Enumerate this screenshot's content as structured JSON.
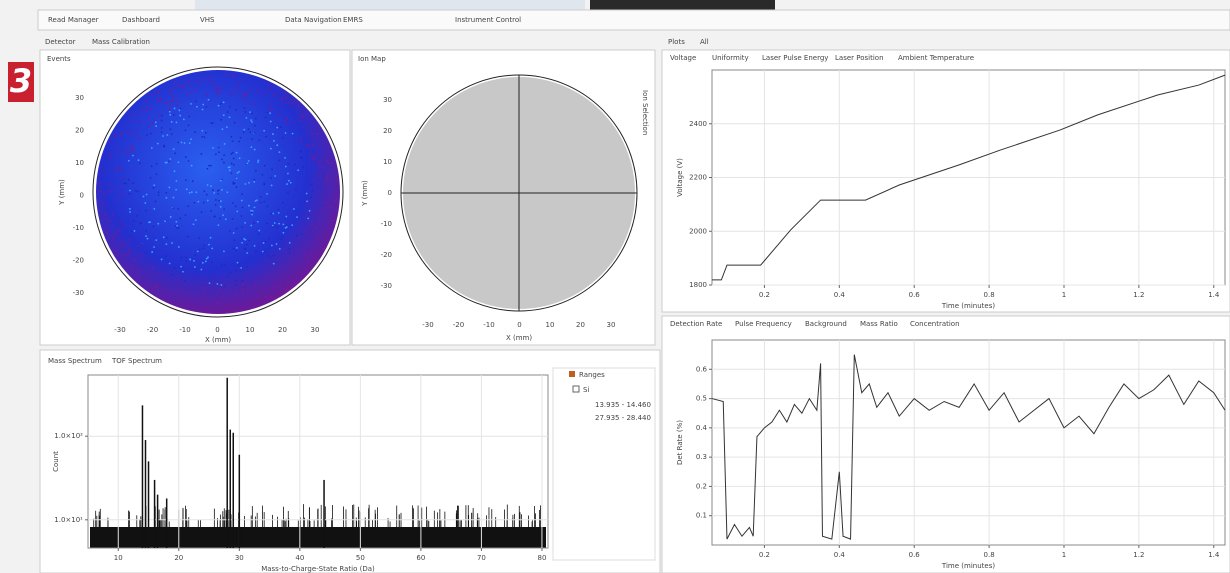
{
  "nav_tabs": [
    "Read Manager",
    "Dashboard",
    "VHS",
    "Data Navigation",
    "EMRS",
    "Instrument Control"
  ],
  "badge": "3",
  "detector": {
    "tabs": [
      "Detector",
      "Mass Calibration"
    ],
    "events": {
      "tab": "Events",
      "x_label": "X (mm)",
      "y_label": "Y (mm)",
      "xticks": [
        "-30",
        "-20",
        "-10",
        "0",
        "10",
        "20",
        "30"
      ],
      "yticks": [
        "30",
        "20",
        "10",
        "0",
        "-10",
        "-20",
        "-30"
      ]
    },
    "ion_map": {
      "tab": "Ion Map",
      "side_label": "Ion Selection",
      "x_label": "X (mm)",
      "y_label": "Y (mm)",
      "xticks": [
        "-30",
        "-20",
        "-10",
        "0",
        "10",
        "20",
        "30"
      ],
      "yticks": [
        "30",
        "20",
        "10",
        "0",
        "-10",
        "-20",
        "-30"
      ]
    }
  },
  "spectrum": {
    "tabs": [
      "Mass Spectrum",
      "TOF Spectrum"
    ]
  },
  "ranges": {
    "title": "Ranges",
    "element": "Si",
    "items": [
      "13.935 - 14.460",
      "27.935 - 28.440"
    ]
  },
  "plots": {
    "header": [
      "Plots",
      "All"
    ],
    "top_tabs": [
      "Voltage",
      "Uniformity",
      "Laser Pulse Energy",
      "Laser Position",
      "Ambient Temperature"
    ],
    "bottom_tabs": [
      "Detection Rate",
      "Pulse Frequency",
      "Background",
      "Mass Ratio",
      "Concentration"
    ]
  },
  "chart_data": [
    {
      "type": "bar",
      "x_label": "Mass-to-Charge-State Ratio (Da)",
      "y_label": "Count",
      "color": "#111111",
      "x": [
        14.0,
        14.5,
        15.0,
        16.0,
        16.5,
        18.0,
        28.0,
        28.5,
        29.0,
        30.0,
        44.0
      ],
      "values": [
        234,
        90,
        50,
        30,
        20,
        18,
        500,
        120,
        110,
        60,
        30
      ],
      "xlim": [
        5,
        81
      ],
      "xticks": [
        10,
        20,
        30,
        40,
        50,
        60,
        70,
        80
      ],
      "ylim": [
        4.6,
        540
      ],
      "log_scale": true,
      "yticks": [
        {
          "value": 10,
          "label": "1.0×10¹"
        },
        {
          "value": 100,
          "label": "1.0×10²"
        }
      ],
      "grid": true
    },
    {
      "type": "line",
      "x_label": "Time (minutes)",
      "y_label": "Voltage (V)",
      "color": "#333333",
      "x": [
        0.06,
        0.085,
        0.1,
        0.19,
        0.27,
        0.35,
        0.47,
        0.56,
        0.72,
        0.83,
        0.99,
        1.09,
        1.25,
        1.36,
        1.43
      ],
      "values": [
        1819,
        1819,
        1874,
        1874,
        2005,
        2116,
        2116,
        2172,
        2247,
        2302,
        2377,
        2433,
        2507,
        2544,
        2581
      ],
      "xlim": [
        0.06,
        1.43
      ],
      "xticks": [
        0.2,
        0.4,
        0.6,
        0.8,
        1,
        1.2,
        1.4
      ],
      "ylim": [
        1800,
        2600
      ],
      "yticks": [
        1800,
        2000,
        2200,
        2400
      ],
      "grid": true
    },
    {
      "type": "line",
      "x_label": "Time (minutes)",
      "y_label": "Det Rate (%)",
      "color": "#333333",
      "x": [
        0.06,
        0.09,
        0.1,
        0.12,
        0.14,
        0.16,
        0.17,
        0.18,
        0.2,
        0.22,
        0.24,
        0.26,
        0.28,
        0.3,
        0.32,
        0.34,
        0.35,
        0.355,
        0.38,
        0.4,
        0.41,
        0.43,
        0.44,
        0.46,
        0.48,
        0.5,
        0.53,
        0.56,
        0.6,
        0.64,
        0.68,
        0.72,
        0.76,
        0.8,
        0.84,
        0.88,
        0.92,
        0.96,
        1.0,
        1.04,
        1.08,
        1.12,
        1.16,
        1.2,
        1.24,
        1.28,
        1.32,
        1.36,
        1.4,
        1.43
      ],
      "values": [
        0.5,
        0.49,
        0.02,
        0.07,
        0.03,
        0.06,
        0.03,
        0.37,
        0.4,
        0.42,
        0.46,
        0.42,
        0.48,
        0.45,
        0.5,
        0.46,
        0.62,
        0.03,
        0.02,
        0.25,
        0.03,
        0.02,
        0.65,
        0.52,
        0.55,
        0.47,
        0.52,
        0.44,
        0.5,
        0.46,
        0.49,
        0.47,
        0.55,
        0.46,
        0.52,
        0.42,
        0.46,
        0.5,
        0.4,
        0.44,
        0.38,
        0.47,
        0.55,
        0.5,
        0.53,
        0.58,
        0.48,
        0.56,
        0.52,
        0.46
      ],
      "xlim": [
        0.06,
        1.43
      ],
      "xticks": [
        0.2,
        0.4,
        0.6,
        0.8,
        1,
        1.2,
        1.4
      ],
      "ylim": [
        0,
        0.7
      ],
      "yticks": [
        0.1,
        0.2,
        0.3,
        0.4,
        0.5,
        0.6
      ],
      "grid": true
    }
  ]
}
